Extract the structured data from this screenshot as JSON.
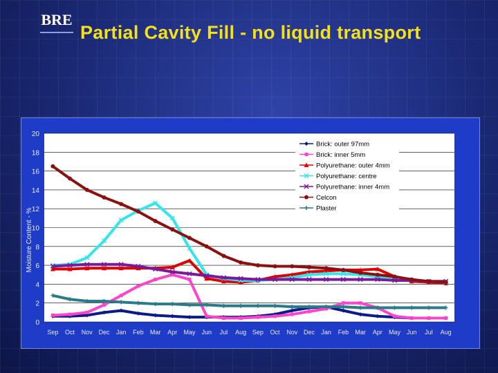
{
  "header": {
    "logo": "BRE",
    "title": "Partial Cavity Fill - no liquid transport"
  },
  "chart_data": {
    "type": "line",
    "title": "",
    "ylabel": "Moisture Content - %",
    "xlabel": "",
    "ylim": [
      0,
      20
    ],
    "yticks": [
      0,
      2,
      4,
      6,
      8,
      10,
      12,
      14,
      16,
      18,
      20
    ],
    "x": [
      "Sep",
      "Oct",
      "Nov",
      "Dec",
      "Jan",
      "Feb",
      "Mar",
      "Apr",
      "May",
      "Jun",
      "Jul",
      "Aug",
      "Sep",
      "Oct",
      "Nov",
      "Dec",
      "Jan",
      "Feb",
      "Mar",
      "Apr",
      "May",
      "Jun",
      "Jul",
      "Aug"
    ],
    "grid": true,
    "legend_position": "top-right",
    "series": [
      {
        "name": "Brick: outer 97mm",
        "color": "#0a1a8a",
        "marker": "diamond",
        "values": [
          0.6,
          0.6,
          0.7,
          1.0,
          1.2,
          0.9,
          0.7,
          0.6,
          0.5,
          0.5,
          0.5,
          0.5,
          0.6,
          0.8,
          1.2,
          1.5,
          1.6,
          1.2,
          0.8,
          0.6,
          0.5,
          0.4,
          0.4,
          0.4
        ]
      },
      {
        "name": "Brick: inner 5mm",
        "color": "#ff44cc",
        "marker": "square",
        "values": [
          0.7,
          0.8,
          1.0,
          1.8,
          2.8,
          3.8,
          4.5,
          5.0,
          4.5,
          0.6,
          0.4,
          0.4,
          0.5,
          0.6,
          0.8,
          1.1,
          1.4,
          2.0,
          2.0,
          1.5,
          0.6,
          0.4,
          0.4,
          0.4
        ]
      },
      {
        "name": "Polyurethane: outer 4mm",
        "color": "#dd0000",
        "marker": "triangle",
        "values": [
          5.6,
          5.6,
          5.7,
          5.7,
          5.7,
          5.7,
          5.7,
          5.8,
          6.5,
          4.6,
          4.3,
          4.2,
          4.4,
          4.8,
          5.0,
          5.3,
          5.4,
          5.5,
          5.5,
          5.6,
          4.8,
          4.3,
          4.2,
          4.1
        ]
      },
      {
        "name": "Polyurethane: centre",
        "color": "#33e6ee",
        "marker": "x",
        "values": [
          6.0,
          6.1,
          6.8,
          8.6,
          10.8,
          11.8,
          12.6,
          11.0,
          7.8,
          5.0,
          4.6,
          4.4,
          4.4,
          4.5,
          4.7,
          5.0,
          5.1,
          5.1,
          5.0,
          4.8,
          4.6,
          4.4,
          4.3,
          4.2
        ]
      },
      {
        "name": "Polyurethane: inner 4mm",
        "color": "#7a1a9a",
        "marker": "x",
        "values": [
          5.9,
          6.0,
          6.1,
          6.1,
          6.1,
          5.9,
          5.6,
          5.3,
          5.1,
          4.9,
          4.7,
          4.6,
          4.5,
          4.5,
          4.5,
          4.5,
          4.5,
          4.5,
          4.5,
          4.5,
          4.4,
          4.4,
          4.3,
          4.3
        ]
      },
      {
        "name": "Celcon",
        "color": "#8b1010",
        "marker": "circle",
        "values": [
          16.5,
          15.2,
          14.0,
          13.2,
          12.5,
          11.7,
          10.7,
          9.8,
          8.9,
          8.0,
          7.0,
          6.3,
          6.0,
          5.9,
          5.9,
          5.8,
          5.7,
          5.5,
          5.2,
          5.0,
          4.8,
          4.5,
          4.3,
          4.2
        ]
      },
      {
        "name": "Plaster",
        "color": "#2a7a8a",
        "marker": "plus",
        "values": [
          2.8,
          2.4,
          2.2,
          2.2,
          2.1,
          2.0,
          1.9,
          1.9,
          1.8,
          1.8,
          1.7,
          1.7,
          1.7,
          1.7,
          1.6,
          1.6,
          1.6,
          1.6,
          1.5,
          1.5,
          1.5,
          1.5,
          1.5,
          1.5
        ]
      }
    ]
  }
}
